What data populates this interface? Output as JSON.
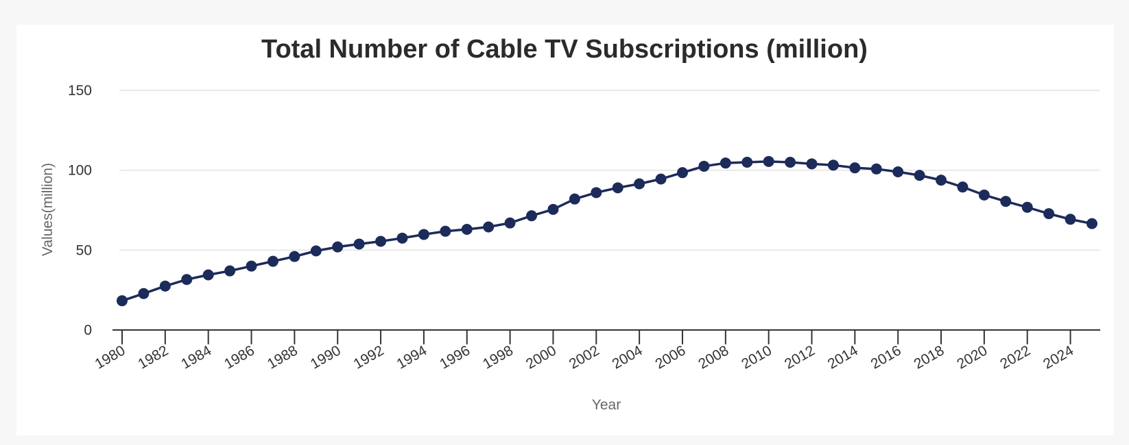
{
  "chart_data": {
    "type": "line",
    "title": "Total Number of Cable TV Subscriptions (million)",
    "xlabel": "Year",
    "ylabel": "Values(million)",
    "ylim": [
      0,
      150
    ],
    "yticks": [
      0,
      50,
      100,
      150
    ],
    "xticks": [
      1980,
      1982,
      1984,
      1986,
      1988,
      1990,
      1992,
      1994,
      1996,
      1998,
      2000,
      2002,
      2004,
      2006,
      2008,
      2010,
      2012,
      2014,
      2016,
      2018,
      2020,
      2022,
      2024
    ],
    "grid": true,
    "legend": "none",
    "color": "#1c2b5a",
    "x": [
      1980,
      1981,
      1982,
      1983,
      1984,
      1985,
      1986,
      1987,
      1988,
      1989,
      1990,
      1991,
      1992,
      1993,
      1994,
      1995,
      1996,
      1997,
      1998,
      1999,
      2000,
      2001,
      2002,
      2003,
      2004,
      2005,
      2006,
      2007,
      2008,
      2009,
      2010,
      2011,
      2012,
      2013,
      2014,
      2015,
      2016,
      2017,
      2018,
      2019,
      2020,
      2021,
      2022,
      2023,
      2024,
      2025
    ],
    "series": [
      {
        "values": [
          18.3,
          22.8,
          27.5,
          31.6,
          34.5,
          37.0,
          40.0,
          43.0,
          46.0,
          49.5,
          52.0,
          53.8,
          55.5,
          57.5,
          59.8,
          61.8,
          63.0,
          64.5,
          67.0,
          71.5,
          75.5,
          82.0,
          86.0,
          89.0,
          91.5,
          94.5,
          98.5,
          102.5,
          104.5,
          105.0,
          105.5,
          105.0,
          104.0,
          103.2,
          101.5,
          100.8,
          99.0,
          96.8,
          93.8,
          89.5,
          84.5,
          80.5,
          76.8,
          72.8,
          69.3,
          66.6
        ]
      }
    ]
  }
}
